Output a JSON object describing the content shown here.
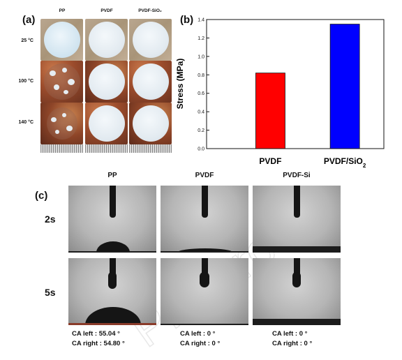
{
  "panel_a": {
    "label": "(a)",
    "columns": [
      "PP",
      "PVDF",
      "PVDF-SiO₂"
    ],
    "rows": [
      "25 °C",
      "100 °C",
      "140 °C"
    ]
  },
  "panel_b": {
    "label": "(b)"
  },
  "chart_data": {
    "type": "bar",
    "categories": [
      "PVDF",
      "PVDF/SiO2"
    ],
    "values": [
      0.82,
      1.35
    ],
    "ylabel": "Stress (MPa)",
    "ylim": [
      0,
      1.4
    ],
    "yticks": [
      "0.0",
      "0.2",
      "0.4",
      "0.6",
      "0.8",
      "1.0",
      "1.2",
      "1.4"
    ],
    "colors": [
      "#ff0000",
      "#0000ff"
    ],
    "grid": false,
    "legend": "none"
  },
  "panel_c": {
    "label": "(c)",
    "columns": [
      "PP",
      "PVDF",
      "PVDF-Si"
    ],
    "rows": [
      "2s",
      "5s"
    ],
    "contact_angles": [
      {
        "left": "CA left : 55.04 °",
        "right": "CA right : 54.80 °"
      },
      {
        "left": "CA left : 0 °",
        "right": "CA right : 0 °"
      },
      {
        "left": "CA left : 0 °",
        "right": "CA right : 0 °"
      }
    ]
  },
  "watermark": "Pre-proof"
}
